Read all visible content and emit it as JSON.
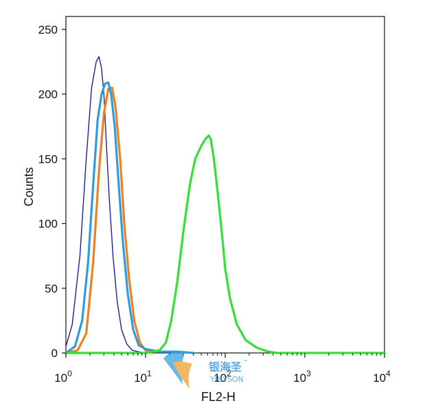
{
  "chart_data": {
    "type": "line",
    "title": "",
    "xlabel": "FL2-H",
    "ylabel": "Counts",
    "x_scale": "log",
    "xlim": [
      1,
      10000
    ],
    "ylim": [
      0,
      260
    ],
    "x_ticks": [
      {
        "value": 1,
        "base": "10",
        "exp": "0"
      },
      {
        "value": 10,
        "base": "10",
        "exp": "1"
      },
      {
        "value": 100,
        "base": "10",
        "exp": "2"
      },
      {
        "value": 1000,
        "base": "10",
        "exp": "3"
      },
      {
        "value": 10000,
        "base": "10",
        "exp": "4"
      }
    ],
    "y_ticks": [
      0,
      50,
      100,
      150,
      200,
      250
    ],
    "grid": false,
    "legend": "none",
    "series": [
      {
        "color": "#1c1c9e",
        "width": 1.4,
        "x": [
          1.0,
          1.2,
          1.5,
          1.8,
          2.1,
          2.4,
          2.6,
          2.8,
          3.0,
          3.2,
          3.5,
          3.9,
          4.4,
          5.0,
          5.8,
          6.8,
          8.0,
          10
        ],
        "y": [
          5,
          22,
          75,
          150,
          205,
          225,
          229,
          220,
          200,
          165,
          120,
          75,
          40,
          18,
          7,
          2,
          1,
          0
        ]
      },
      {
        "color": "#f07f20",
        "width": 3.2,
        "x": [
          1.0,
          1.4,
          1.8,
          2.2,
          2.6,
          3.0,
          3.4,
          3.8,
          4.2,
          4.8,
          5.4,
          6.2,
          7.2,
          8.5,
          10,
          12
        ],
        "y": [
          0,
          2,
          15,
          70,
          140,
          185,
          204,
          205,
          190,
          150,
          100,
          58,
          25,
          8,
          2,
          0
        ]
      },
      {
        "color": "#2d9be0",
        "width": 3.2,
        "x": [
          1.0,
          1.3,
          1.6,
          1.9,
          2.2,
          2.5,
          2.8,
          3.1,
          3.4,
          3.7,
          4.1,
          4.6,
          5.2,
          6.0,
          7.0,
          8.2,
          10,
          15,
          25,
          40
        ],
        "y": [
          0,
          5,
          25,
          70,
          130,
          180,
          200,
          208,
          209,
          200,
          175,
          130,
          85,
          45,
          18,
          6,
          3,
          1,
          1,
          0
        ]
      },
      {
        "color": "#33e033",
        "width": 3.2,
        "x": [
          1.0,
          10,
          15,
          18,
          21,
          25,
          30,
          36,
          42,
          50,
          56,
          62,
          66,
          72,
          80,
          90,
          100,
          115,
          140,
          180,
          250,
          350,
          450,
          600,
          10000
        ],
        "y": [
          0,
          0,
          2,
          8,
          25,
          55,
          95,
          130,
          150,
          160,
          165,
          168,
          165,
          150,
          125,
          95,
          65,
          42,
          22,
          10,
          4,
          1,
          0,
          0,
          0
        ]
      }
    ]
  },
  "watermark": {
    "cn": "银海圣",
    "en": "YINYSON",
    "tm": "™"
  }
}
